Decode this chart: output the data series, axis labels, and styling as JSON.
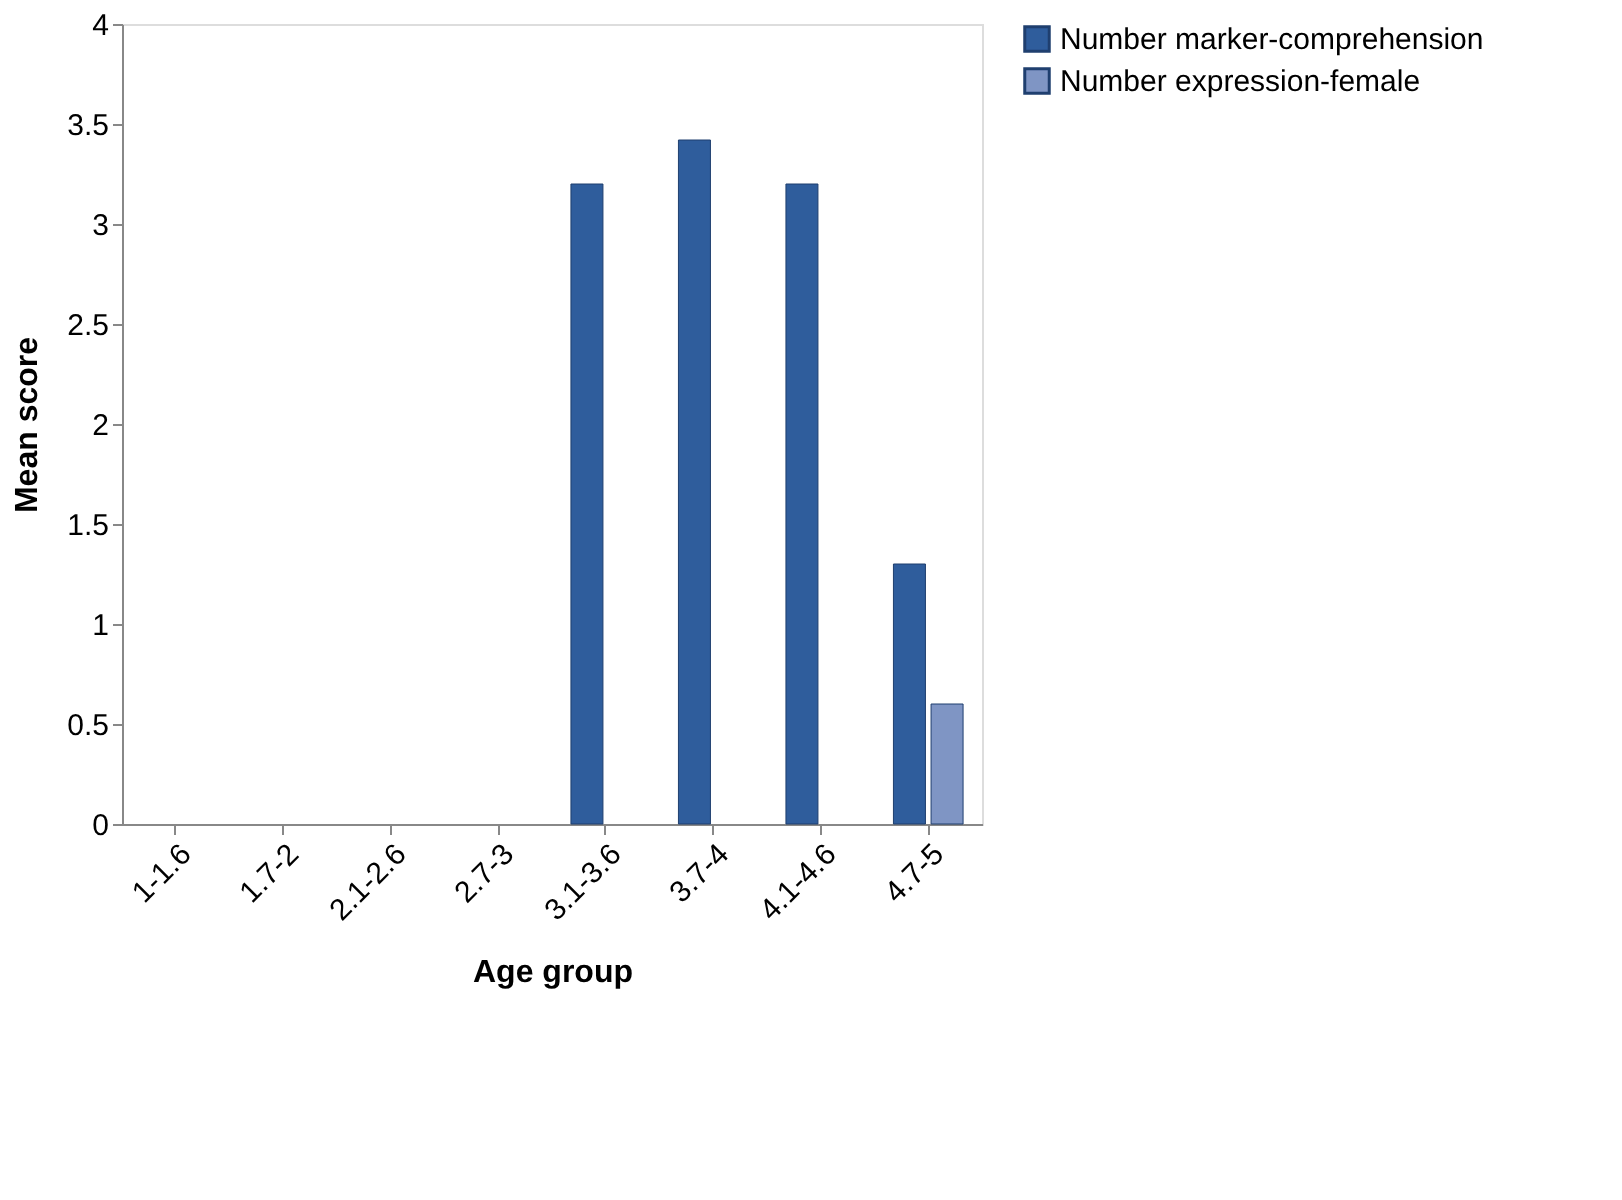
{
  "chart_data": {
    "type": "bar",
    "xlabel": "Age group",
    "ylabel": "Mean score",
    "categories": [
      "1-1.6",
      "1.7-2",
      "2.1-2.6",
      "2.7-3",
      "3.1-3.6",
      "3.7-4",
      "4.1-4.6",
      "4.7-5"
    ],
    "series": [
      {
        "name": "Number marker-comprehension",
        "color": "#2f5d9c",
        "values": [
          null,
          null,
          null,
          null,
          3.2,
          3.42,
          3.2,
          1.3
        ]
      },
      {
        "name": "Number expression-female",
        "color": "#7f95c4",
        "values": [
          null,
          null,
          null,
          null,
          null,
          null,
          null,
          0.6
        ]
      }
    ],
    "ylim": [
      0,
      4
    ],
    "yticks": [
      0,
      0.5,
      1,
      1.5,
      2,
      2.5,
      3,
      3.5,
      4
    ],
    "grid": false,
    "legend": "right"
  }
}
